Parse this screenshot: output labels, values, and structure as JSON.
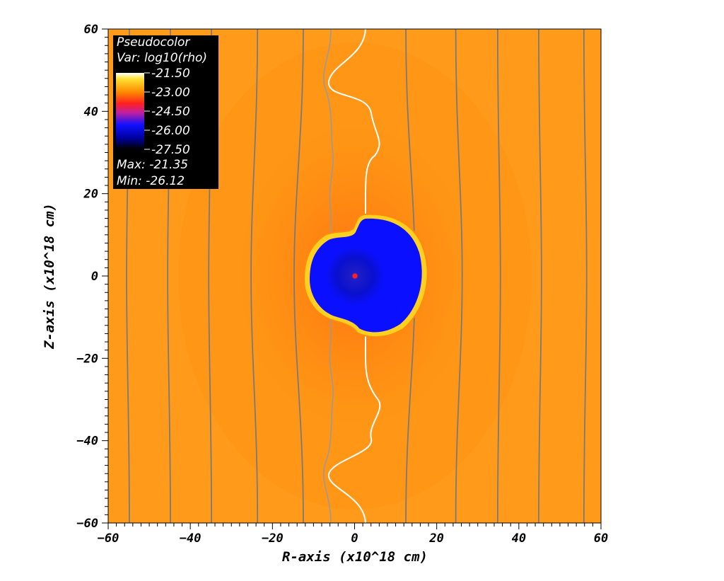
{
  "chart_data": {
    "type": "heatmap",
    "plot_kind": "Pseudocolor",
    "variable": "Var: log10(rho)",
    "legend_title": "Pseudocolor",
    "colorbar_ticks": [
      "-21.50",
      "-23.00",
      "-24.50",
      "-26.00",
      "-27.50"
    ],
    "colorbar_values": [
      -21.5,
      -23.0,
      -24.5,
      -26.0,
      -27.5
    ],
    "max_label": "Max: -21.35",
    "min_label": "Min: -26.12",
    "max_value": -21.35,
    "min_value": -26.12,
    "xlabel": "R-axis (x10^18 cm)",
    "ylabel": "Z-axis (x10^18 cm)",
    "xlim": [
      -60,
      60
    ],
    "ylim": [
      -60,
      60
    ],
    "xticks": [
      -60,
      -40,
      -20,
      0,
      20,
      40,
      60
    ],
    "yticks": [
      60,
      40,
      20,
      0,
      -20,
      -40,
      -60
    ],
    "xtick_labels": [
      "−60",
      "−40",
      "−20",
      "0",
      "20",
      "40",
      "60"
    ],
    "ytick_labels": [
      "60",
      "40",
      "20",
      "0",
      "−20",
      "−40",
      "−60"
    ],
    "background_level": -23.0,
    "cavity_level": -26.0,
    "field_line_r_positions": [
      -55,
      -45,
      -35,
      -24,
      -13,
      13,
      25,
      35,
      45,
      56
    ],
    "legend_placement": "top-left",
    "colors": {
      "background": "#ff9a1a",
      "cavity": "#0a10ff",
      "shell": "#ffd020",
      "field_lines": "#7a7a7a",
      "legend_bg": "#000000"
    }
  }
}
